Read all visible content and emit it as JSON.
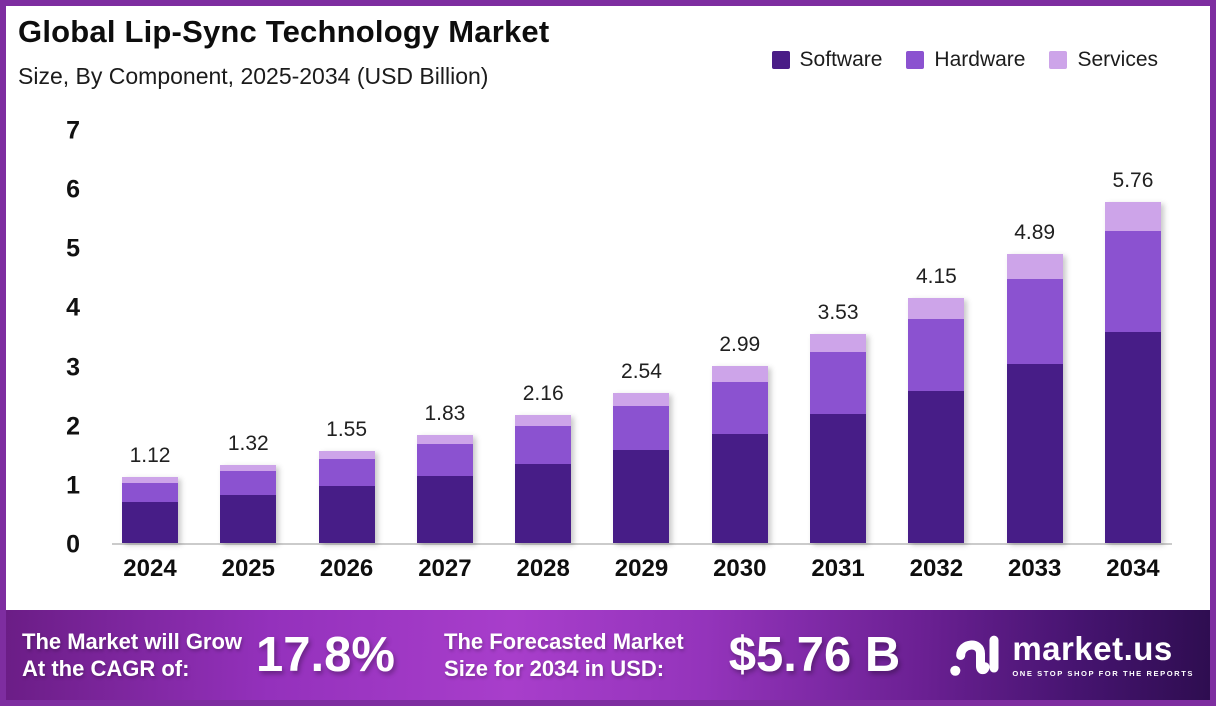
{
  "frame": {
    "border_color": "#7e2da0",
    "background": "#ffffff"
  },
  "header": {
    "title": "Global Lip-Sync Technology Market",
    "subtitle": "Size, By Component, 2025-2034 (USD Billion)"
  },
  "legend": [
    {
      "label": "Software",
      "color": "#4a1d87"
    },
    {
      "label": "Hardware",
      "color": "#8b52d0"
    },
    {
      "label": "Services",
      "color": "#cda4e9"
    }
  ],
  "chart_data": {
    "type": "bar",
    "stacked": true,
    "title": "Global Lip-Sync Technology Market",
    "subtitle": "Size, By Component, 2025-2034 (USD Billion)",
    "units": "USD Billion",
    "xlabel": "",
    "ylabel": "",
    "grid": false,
    "legend_position": "top-right",
    "ylim": [
      0,
      7
    ],
    "yticks": [
      0,
      1,
      2,
      3,
      4,
      5,
      6,
      7
    ],
    "categories": [
      "2024",
      "2025",
      "2026",
      "2027",
      "2028",
      "2029",
      "2030",
      "2031",
      "2032",
      "2033",
      "2034"
    ],
    "totals": [
      1.12,
      1.32,
      1.55,
      1.83,
      2.16,
      2.54,
      2.99,
      3.53,
      4.15,
      4.89,
      5.76
    ],
    "value_labels": [
      "1.12",
      "1.32",
      "1.55",
      "1.83",
      "2.16",
      "2.54",
      "2.99",
      "3.53",
      "4.15",
      "4.89",
      "5.76"
    ],
    "series": [
      {
        "name": "Software",
        "color": "#471d87",
        "values": [
          0.69,
          0.82,
          0.96,
          1.13,
          1.34,
          1.57,
          1.85,
          2.19,
          2.57,
          3.03,
          3.57
        ]
      },
      {
        "name": "Hardware",
        "color": "#8b52d0",
        "values": [
          0.33,
          0.39,
          0.46,
          0.54,
          0.64,
          0.75,
          0.88,
          1.04,
          1.22,
          1.44,
          1.7
        ]
      },
      {
        "name": "Services",
        "color": "#cda4e9",
        "values": [
          0.1,
          0.11,
          0.13,
          0.16,
          0.18,
          0.22,
          0.26,
          0.3,
          0.36,
          0.42,
          0.49
        ]
      }
    ]
  },
  "footer": {
    "cagr_label_line1": "The Market will Grow",
    "cagr_label_line2": "At the CAGR of:",
    "cagr_value": "17.8%",
    "forecast_label_line1": "The Forecasted Market",
    "forecast_label_line2": "Size for 2034 in USD:",
    "forecast_value": "$5.76 B",
    "brand": {
      "name": "market.us",
      "tagline": "ONE STOP SHOP FOR THE REPORTS"
    }
  }
}
